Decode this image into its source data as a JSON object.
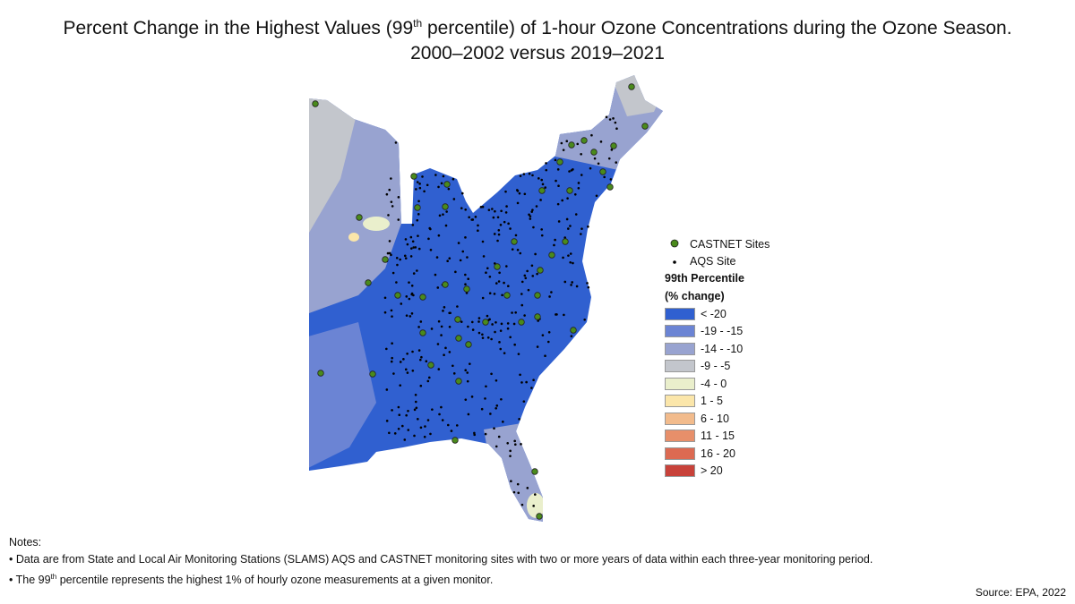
{
  "title": {
    "line1_pre": "Percent Change in the Highest Values (99",
    "line1_sup": "th",
    "line1_post": " percentile) of 1-hour Ozone Concentrations during the Ozone Season.",
    "line2": "2000–2002 versus 2019–2021"
  },
  "legend": {
    "castnet": "CASTNET Sites",
    "castnet_color": "#4a8a1c",
    "aqs": "AQS Site",
    "heading1": "99th Percentile",
    "heading2": "(% change)",
    "classes": [
      {
        "label": "< -20",
        "color": "#3060d0"
      },
      {
        "label": "-19 - -15",
        "color": "#6b84d4"
      },
      {
        "label": "-14 - -10",
        "color": "#98a3d0"
      },
      {
        "label": "-9 - -5",
        "color": "#c3c6cc"
      },
      {
        "label": "-4 - 0",
        "color": "#eaefcc"
      },
      {
        "label": "1 - 5",
        "color": "#fbe6aa"
      },
      {
        "label": "6 - 10",
        "color": "#f2bb8c"
      },
      {
        "label": "11 - 15",
        "color": "#e78f6a"
      },
      {
        "label": "16 - 20",
        "color": "#dc6a52"
      },
      {
        "label": "> 20",
        "color": "#c8423a"
      }
    ]
  },
  "notes": {
    "heading": "Notes:",
    "item1": "• Data are from State and Local Air Monitoring Stations (SLAMS) AQS and CASTNET monitoring sites with two or more years of data within each three-year monitoring period.",
    "item2_pre": "• The 99",
    "item2_sup": "th",
    "item2_post": " percentile represents the highest 1% of hourly ozone measurements at a given monitor."
  },
  "source": "Source: EPA, 2022"
}
